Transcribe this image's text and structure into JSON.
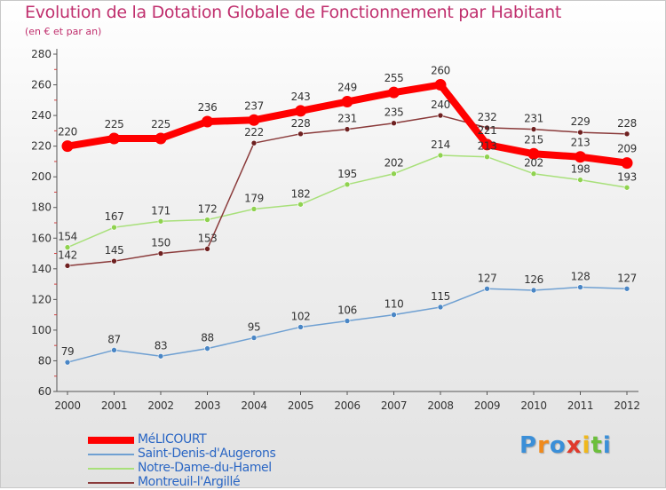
{
  "page": {
    "title": "Evolution de la Dotation Globale de Fonctionnement par Habitant",
    "subtitle": "(en € et par an)"
  },
  "brand": {
    "logo_text": "Proxiti",
    "logo_letters": [
      {
        "char": "P",
        "color": "#3b8fd8"
      },
      {
        "char": "r",
        "color": "#f08a1c"
      },
      {
        "char": "o",
        "color": "#3b8fd8"
      },
      {
        "char": "x",
        "color": "#e03a2c"
      },
      {
        "char": "i",
        "color": "#f0b81c"
      },
      {
        "char": "t",
        "color": "#6cbf3c"
      },
      {
        "char": "i",
        "color": "#3b8fd8"
      }
    ]
  },
  "chart_data": {
    "type": "line",
    "title": "Evolution de la Dotation Globale de Fonctionnement par Habitant",
    "subtitle": "(en € et par an)",
    "xlabel": "",
    "ylabel": "",
    "categories": [
      "2000",
      "2001",
      "2002",
      "2003",
      "2004",
      "2005",
      "2006",
      "2007",
      "2008",
      "2009",
      "2010",
      "2011",
      "2012"
    ],
    "ylim": [
      60,
      280
    ],
    "yticks": [
      60,
      80,
      100,
      120,
      140,
      160,
      180,
      200,
      220,
      240,
      260,
      280
    ],
    "grid": false,
    "legend_position": "bottom-left",
    "series": [
      {
        "name": "MéLICOURT",
        "color": "#ff0000",
        "marker_color": "#ff0000",
        "values": [
          220,
          225,
          225,
          236,
          237,
          243,
          249,
          255,
          260,
          221,
          215,
          213,
          209
        ]
      },
      {
        "name": "Saint-Denis-d'Augerons",
        "color": "#6fa0d2",
        "marker_color": "#4a86c5",
        "values": [
          79,
          87,
          83,
          88,
          95,
          102,
          106,
          110,
          115,
          127,
          126,
          128,
          127
        ]
      },
      {
        "name": "Notre-Dame-du-Hamel",
        "color": "#a8e07a",
        "marker_color": "#8fd24f",
        "values": [
          154,
          167,
          171,
          172,
          179,
          182,
          195,
          202,
          214,
          213,
          202,
          198,
          193
        ]
      },
      {
        "name": "Montreuil-l'Argillé",
        "color": "#8a3a3a",
        "marker_color": "#6e2020",
        "values": [
          142,
          145,
          150,
          153,
          222,
          228,
          231,
          235,
          240,
          232,
          231,
          229,
          228
        ]
      }
    ],
    "data_labels": [
      {
        "series": 0,
        "values": [
          "220",
          "225",
          "225",
          "236",
          "237",
          "243",
          "249",
          "255",
          "260",
          "221",
          "215",
          "213",
          "209"
        ]
      },
      {
        "series": 1,
        "values": [
          "79",
          "87",
          "83",
          "88",
          "95",
          "102",
          "106",
          "110",
          "115",
          "127",
          "126",
          "128",
          "127"
        ]
      },
      {
        "series": 2,
        "values": [
          "154",
          "167",
          "171",
          "172",
          "179",
          "182",
          "195",
          "202",
          "214",
          "213",
          "202",
          "198",
          "193"
        ]
      },
      {
        "series": 3,
        "values": [
          "142",
          "145",
          "150",
          "153",
          "222",
          "228",
          "231",
          "235",
          "240",
          "232",
          "231",
          "229",
          "228"
        ]
      }
    ]
  }
}
